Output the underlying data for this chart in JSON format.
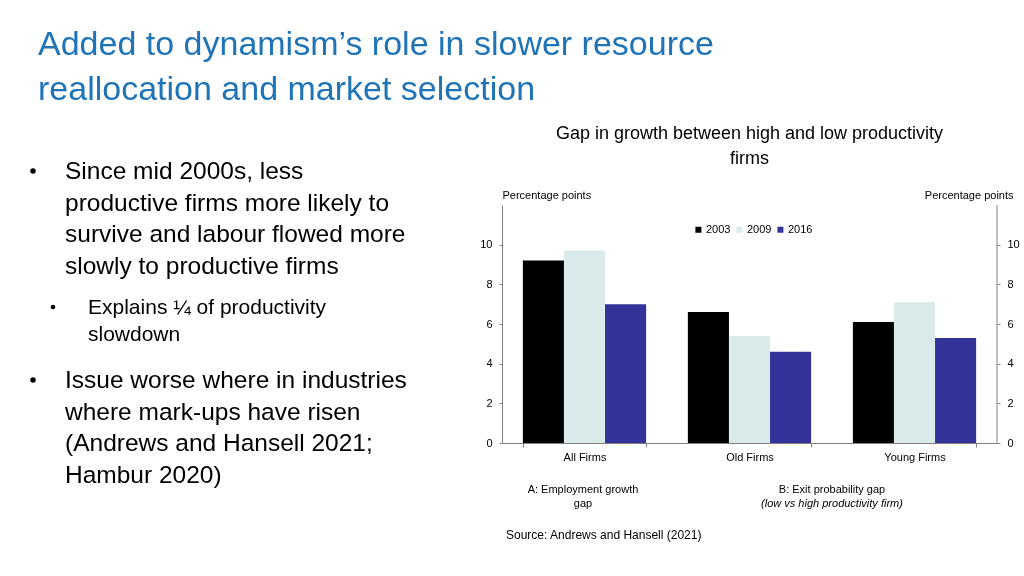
{
  "chart_data": {
    "type": "bar",
    "title": "Added to dynamism’s role in slower resource reallocation and market selection",
    "subtitle": "Gap in growth between high and low productivity firms",
    "ylabel": "Percentage points",
    "y2label": "Percentage points",
    "categories": [
      "All Firms",
      "Old Firms",
      "Young Firms"
    ],
    "series": [
      {
        "name": "2003",
        "color": "#000000",
        "values": [
          9.2,
          6.6,
          6.1
        ]
      },
      {
        "name": "2009",
        "color": "#daeaea",
        "values": [
          9.7,
          5.4,
          7.1
        ]
      },
      {
        "name": "2016",
        "color": "#333399",
        "values": [
          7.0,
          4.6,
          5.3
        ]
      }
    ],
    "ylim": [
      0,
      12
    ],
    "yticks": [
      0,
      2,
      4,
      6,
      8,
      10
    ],
    "y2lim": [
      0,
      12
    ],
    "y2ticks": [
      0,
      2,
      4,
      6,
      8,
      10
    ],
    "legend": "top",
    "grid": false,
    "annotations": [
      "Since mid 2000s, less productive firms more likely to survive and labour flowed more slowly to productive firms",
      "Explains ¼ of productivity slowdown",
      "Issue worse where in industries where mark-ups have risen (Andrews and Hansell 2021; Hambur 2020)",
      "A: Employment growth gap",
      "B: Exit probability gap",
      "(low vs high productivity firm)",
      "Source: Andrews and Hansell (2021)"
    ]
  }
}
